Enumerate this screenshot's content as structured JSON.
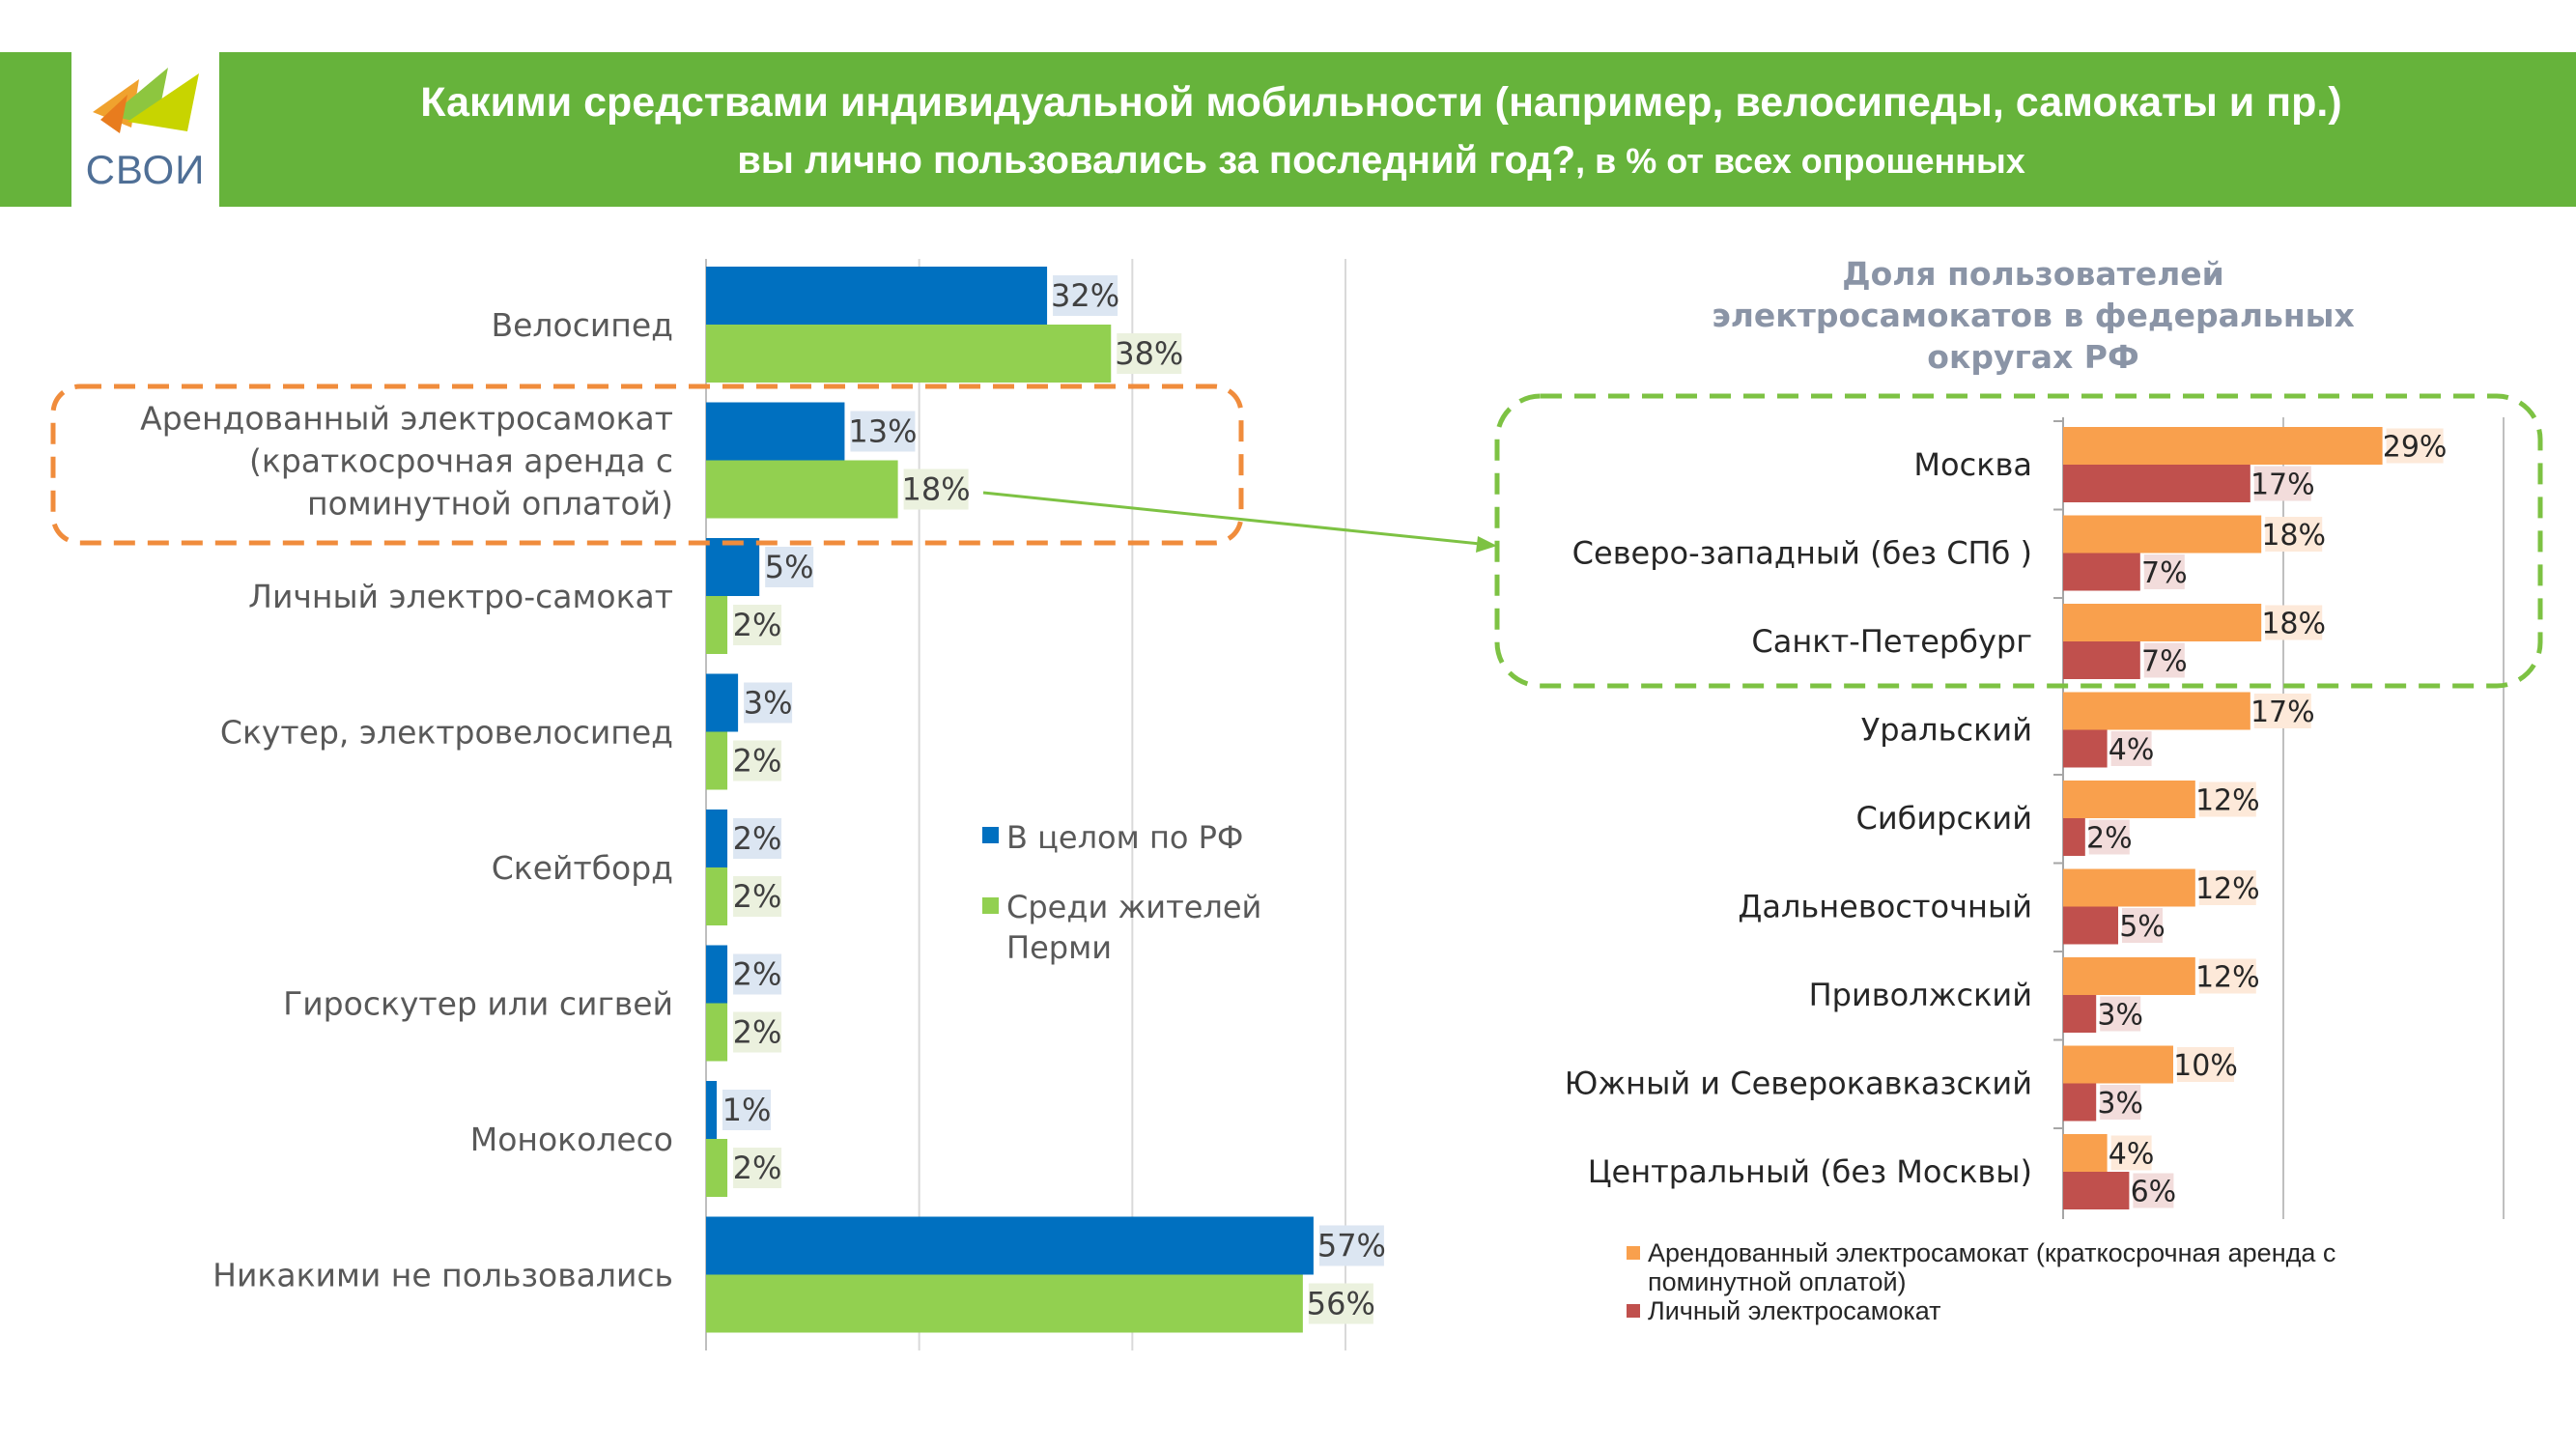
{
  "header": {
    "logo_text": "СВОИ",
    "title_line1": "Какими средствами индивидуальной мобильности (например, велосипеды, самокаты и пр.)",
    "title_line2_main": "вы лично пользовались за последний год?",
    "title_line2_suffix": ", в % от всех опрошенных"
  },
  "colors": {
    "header_bg": "#66b33b",
    "rf": "#0070c0",
    "perm": "#92d050",
    "rental": "#f9a04d",
    "personal": "#c0504d",
    "orange_box": "#f08c3c",
    "green_box": "#7dc243"
  },
  "chart_data": [
    {
      "type": "bar",
      "orientation": "horizontal",
      "categories": [
        [
          "Велосипед"
        ],
        [
          "Арендованный электросамокат",
          "(краткосрочная аренда с",
          "поминутной оплатой)"
        ],
        [
          "Личный электро-самокат"
        ],
        [
          "Скутер, электровелосипед"
        ],
        [
          "Скейтборд"
        ],
        [
          "Гироскутер или сигвей"
        ],
        [
          "Моноколесо"
        ],
        [
          "Никакими не пользовались"
        ]
      ],
      "series": [
        {
          "name": "В целом по РФ",
          "values": [
            32,
            13,
            5,
            3,
            2,
            2,
            1,
            57
          ],
          "labels": [
            "32%",
            "13%",
            "5%",
            "3%",
            "2%",
            "2%",
            "1%",
            "57%"
          ]
        },
        {
          "name_lines": [
            "Среди жителей",
            "Перми"
          ],
          "values": [
            38,
            18,
            2,
            2,
            2,
            2,
            2,
            56
          ],
          "labels": [
            "38%",
            "18%",
            "2%",
            "2%",
            "2%",
            "2%",
            "2%",
            "56%"
          ]
        }
      ],
      "xlim": [
        0,
        60
      ],
      "grid": true
    },
    {
      "type": "bar",
      "orientation": "horizontal",
      "title_lines": [
        "Доля пользователей",
        "электросамокатов в федеральных",
        "округах РФ"
      ],
      "categories": [
        "Москва",
        "Северо-западный (без СПб )",
        "Санкт-Петербург",
        "Уральский",
        "Сибирский",
        "Дальневосточный",
        "Приволжский",
        "Южный и Северокавказский",
        "Центральный (без Москвы)"
      ],
      "series": [
        {
          "name_lines": [
            "Арендованный электросамокат (краткосрочная аренда с",
            "поминутной оплатой)"
          ],
          "values": [
            29,
            18,
            18,
            17,
            12,
            12,
            12,
            10,
            4
          ],
          "labels": [
            "29%",
            "18%",
            "18%",
            "17%",
            "12%",
            "12%",
            "12%",
            "10%",
            "4%"
          ]
        },
        {
          "name": "Личный электросамокат",
          "values": [
            17,
            7,
            7,
            4,
            2,
            5,
            3,
            3,
            6
          ],
          "labels": [
            "17%",
            "7%",
            "7%",
            "4%",
            "2%",
            "5%",
            "3%",
            "3%",
            "6%"
          ]
        }
      ],
      "xlim": [
        0,
        40
      ],
      "grid": true
    }
  ]
}
